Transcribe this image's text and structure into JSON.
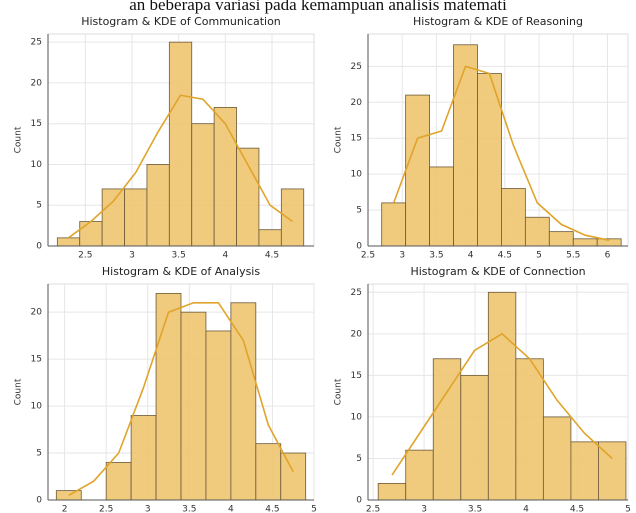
{
  "header_text": "an beberapa variasi pada kemampuan analisis matemati",
  "chart_data": [
    {
      "type": "histogram",
      "title": "Histogram & KDE of Communication",
      "ylabel": "Count",
      "color": "#eec46f",
      "kde_color": "#e0a42a",
      "bins": [
        2.2,
        2.44,
        2.68,
        2.92,
        3.16,
        3.4,
        3.64,
        3.88,
        4.12,
        4.36,
        4.6,
        4.84
      ],
      "counts": [
        1,
        3,
        7,
        7,
        10,
        25,
        15,
        17,
        12,
        2,
        7
      ],
      "kde": {
        "x": [
          2.32,
          2.56,
          2.8,
          3.04,
          3.28,
          3.52,
          3.76,
          4.0,
          4.24,
          4.48,
          4.72
        ],
        "values": [
          1,
          3,
          5.5,
          9,
          14,
          18.5,
          18,
          15,
          10,
          5,
          3
        ]
      },
      "xlim": [
        2.1,
        4.95
      ],
      "xticks": [
        2.5,
        3.0,
        3.5,
        4.0,
        4.5
      ],
      "ylim": [
        0,
        26
      ],
      "yticks": [
        0,
        5,
        10,
        15,
        20,
        25
      ],
      "grid": true
    },
    {
      "type": "histogram",
      "title": "Histogram & KDE of Reasoning",
      "ylabel": "Count",
      "color": "#eec46f",
      "kde_color": "#e0a42a",
      "bins": [
        2.7,
        3.05,
        3.4,
        3.75,
        4.1,
        4.45,
        4.8,
        5.15,
        5.5,
        5.85,
        6.2
      ],
      "counts": [
        6,
        21,
        11,
        28,
        24,
        8,
        4,
        2,
        1,
        1
      ],
      "kde": {
        "x": [
          2.875,
          3.225,
          3.575,
          3.925,
          4.275,
          4.625,
          4.975,
          5.325,
          5.675,
          6.025
        ],
        "values": [
          6,
          15,
          16,
          25,
          24,
          14,
          6,
          3,
          1.5,
          0.8
        ]
      },
      "xlim": [
        2.5,
        6.3
      ],
      "xticks": [
        2.5,
        3.0,
        3.5,
        4.0,
        4.5,
        5.0,
        5.5,
        6.0
      ],
      "ylim": [
        0,
        29.5
      ],
      "yticks": [
        0,
        5,
        10,
        15,
        20,
        25
      ],
      "grid": true
    },
    {
      "type": "histogram",
      "title": "Histogram & KDE of Analysis",
      "ylabel": "Count",
      "color": "#eec46f",
      "kde_color": "#e0a42a",
      "bins": [
        1.9,
        2.2,
        2.5,
        2.8,
        3.1,
        3.4,
        3.7,
        4.0,
        4.3,
        4.6,
        4.9
      ],
      "counts": [
        1,
        0,
        4,
        9,
        22,
        20,
        18,
        21,
        6,
        5
      ],
      "kde": {
        "x": [
          2.05,
          2.35,
          2.65,
          2.95,
          3.25,
          3.55,
          3.85,
          4.15,
          4.45,
          4.75
        ],
        "values": [
          0.5,
          2,
          5,
          12,
          20,
          21,
          21,
          17,
          8,
          3
        ]
      },
      "xlim": [
        1.8,
        5.0
      ],
      "xticks": [
        2.0,
        2.5,
        3.0,
        3.5,
        4.0,
        4.5,
        5.0
      ],
      "ylim": [
        0,
        23
      ],
      "yticks": [
        0,
        5,
        10,
        15,
        20
      ],
      "grid": true
    },
    {
      "type": "histogram",
      "title": "Histogram & KDE of Connection",
      "ylabel": "Count",
      "color": "#eec46f",
      "kde_color": "#e0a42a",
      "bins": [
        2.55,
        2.82,
        3.09,
        3.36,
        3.63,
        3.9,
        4.17,
        4.44,
        4.71,
        4.98
      ],
      "counts": [
        2,
        6,
        17,
        15,
        25,
        17,
        10,
        7,
        7
      ],
      "kde": {
        "x": [
          2.685,
          2.955,
          3.225,
          3.495,
          3.765,
          4.035,
          4.305,
          4.575,
          4.845
        ],
        "values": [
          3,
          8,
          13,
          18,
          20,
          17,
          12,
          8,
          5
        ]
      },
      "xlim": [
        2.45,
        5.0
      ],
      "xticks": [
        2.5,
        3.0,
        3.5,
        4.0,
        4.5,
        5.0
      ],
      "ylim": [
        0,
        26
      ],
      "yticks": [
        0,
        5,
        10,
        15,
        20,
        25
      ],
      "grid": true
    }
  ]
}
